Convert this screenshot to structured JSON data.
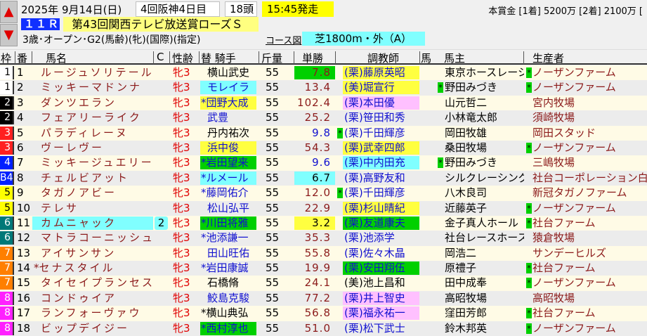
{
  "nav": {
    "up_icon": "arrow-up-icon",
    "down_icon": "arrow-down-icon"
  },
  "race": {
    "date": "2025年 9月14日(日)",
    "meeting": "4回阪神4日目",
    "runners": "18頭",
    "post_time": "15:45発走",
    "race_no": "１１Ｒ",
    "title": "第43回関西テレビ放送賞ローズＳ",
    "conditions": "3歳･オープン･G2(馬齢)(牝)(国際)(指定)",
    "course_link": "コース図",
    "course": "芝1800m・外（A）",
    "prize": "本賞金 [1着] 5200万 [2着] 2100万 ["
  },
  "headers": {
    "waku": "枠",
    "num": "番",
    "name": "馬名",
    "c": "C",
    "sex_age": "性齢",
    "jockey": "替 騎手",
    "weight": "斤量",
    "odds": "単勝",
    "trainer": "調教師",
    "mark": "馬",
    "owner": "馬主",
    "breeder": "生産者"
  },
  "colors": {
    "row_a": "#fffbe6",
    "row_b": "#ececec",
    "green": "#00d000",
    "yellow": "#ffff40",
    "cyan": "#80ffff",
    "pink": "#ffc0ff",
    "blue_text": "#1010d0",
    "brown_text": "#8b1a1a",
    "sex_text": "#e00000"
  },
  "waku_colors": {
    "1": [
      "#ffffff",
      "#000000"
    ],
    "2": [
      "#000000",
      "#ffffff"
    ],
    "3": [
      "#ff2020",
      "#ffffff"
    ],
    "4": [
      "#0020ff",
      "#ffffff"
    ],
    "5": [
      "#ffff00",
      "#000000"
    ],
    "6": [
      "#007878",
      "#ffffff"
    ],
    "7": [
      "#ff7f00",
      "#ffffff"
    ],
    "8": [
      "#ff20ff",
      "#ffffff"
    ]
  },
  "horses": [
    {
      "waku": "1",
      "waku_label": "1",
      "num": "1",
      "name": "ルージュソリテール",
      "sex_age": "牝3",
      "jockey": "横山武史",
      "jc": "black",
      "weight": "55",
      "odds": "7.8",
      "oc": "brown",
      "ob": "green",
      "trainer": "(栗)藤原英昭",
      "tc": "blue",
      "tb": "yellow",
      "owner": "東京ホースレーシ",
      "breeder_mark": "*",
      "breeder": "ノーザンファーム"
    },
    {
      "waku": "1",
      "waku_label": "1",
      "num": "2",
      "name": "ミッキーマドンナ",
      "sex_age": "牝3",
      "jockey": "モレイラ",
      "jc": "blue",
      "jb": "cyan",
      "weight": "55",
      "odds": "13.4",
      "oc": "brown",
      "trainer": "(美)堀宣行",
      "tc": "blue",
      "tb": "yellow",
      "owner_mark": "*",
      "owner": "野田みづき",
      "breeder_mark": "*",
      "breeder": "ノーザンファーム"
    },
    {
      "waku": "2",
      "waku_label": "2",
      "num": "3",
      "name": "ダンツエラン",
      "sex_age": "牝3",
      "jockey_mark": "*",
      "jockey": "団野大成",
      "jc": "blue",
      "jb": "yellow",
      "weight": "55",
      "odds": "102.4",
      "oc": "brown",
      "trainer": "(栗)本田優",
      "tc": "blue",
      "tb": "pink",
      "owner": "山元哲二",
      "breeder": "宮内牧場"
    },
    {
      "waku": "2",
      "waku_label": "2",
      "num": "4",
      "name": "フェアリーライク",
      "sex_age": "牝3",
      "jockey": "武豊",
      "jc": "blue",
      "weight": "55",
      "odds": "25.2",
      "oc": "brown",
      "trainer": "(栗)笹田和秀",
      "tc": "blue",
      "owner": "小林竜太郎",
      "breeder": "須崎牧場"
    },
    {
      "waku": "3",
      "waku_label": "3",
      "num": "5",
      "name": "パラディレーヌ",
      "sex_age": "牝3",
      "jockey": "丹内祐次",
      "jc": "black",
      "weight": "55",
      "odds": "9.8",
      "oc": "blue",
      "trainer_mark": "*",
      "trainer": "(栗)千田輝彦",
      "tc": "blue",
      "owner": "岡田牧雄",
      "breeder": "岡田スタッド"
    },
    {
      "waku": "3",
      "waku_label": "3",
      "num": "6",
      "name": "ヴーレヴー",
      "sex_age": "牝3",
      "jockey": "浜中俊",
      "jc": "blue",
      "jb": "yellow",
      "weight": "55",
      "odds": "54.3",
      "oc": "brown",
      "trainer": "(栗)武幸四郎",
      "tc": "blue",
      "tb": "yellow",
      "owner": "桑田牧場",
      "breeder_mark": "*",
      "breeder": "ノーザンファーム"
    },
    {
      "waku": "4",
      "waku_label": "4",
      "num": "7",
      "name": "ミッキージュエリー",
      "sex_age": "牝3",
      "jockey_mark": "*",
      "jockey": "岩田望来",
      "jc": "blue",
      "jb": "green",
      "weight": "55",
      "odds": "9.6",
      "oc": "blue",
      "trainer": "(栗)中内田充",
      "tc": "blue",
      "tb": "cyan",
      "owner_mark": "*",
      "owner": "野田みづき",
      "breeder": "三嶋牧場"
    },
    {
      "waku": "4",
      "waku_label": "B4",
      "num": "8",
      "name": "チェルビアット",
      "sex_age": "牝3",
      "jockey_mark": "*",
      "jockey": "ルメール",
      "jc": "blue",
      "jb": "cyan",
      "weight": "55",
      "odds": "6.7",
      "oc": "black",
      "ob": "cyan",
      "trainer": "(栗)高野友和",
      "tc": "blue",
      "owner": "シルクレーシング",
      "breeder": "社台コーポレーション白老"
    },
    {
      "waku": "5",
      "waku_label": "5",
      "num": "9",
      "name": "タガノアビー",
      "sex_age": "牝3",
      "jockey_mark": "*",
      "jockey": "藤岡佑介",
      "jc": "blue",
      "weight": "55",
      "odds": "12.0",
      "oc": "brown",
      "trainer_mark": "*",
      "trainer": "(栗)千田輝彦",
      "tc": "blue",
      "owner": "八木良司",
      "breeder": "新冠タガノファーム"
    },
    {
      "waku": "5",
      "waku_label": "5",
      "num": "10",
      "name": "テレサ",
      "sex_age": "牝3",
      "jockey": "松山弘平",
      "jc": "blue",
      "weight": "55",
      "odds": "22.9",
      "oc": "brown",
      "trainer": "(栗)杉山晴紀",
      "tc": "blue",
      "tb": "yellow",
      "owner": "近藤英子",
      "breeder_mark": "*",
      "breeder": "ノーザンファーム"
    },
    {
      "waku": "6",
      "waku_label": "6",
      "num": "11",
      "name": "カムニャック",
      "name_bg": "cyan",
      "c": "2",
      "sex_age": "牝3",
      "jockey_mark": "*",
      "jockey": "川田将雅",
      "jc": "blue",
      "jb": "green",
      "weight": "55",
      "odds": "3.2",
      "oc": "black",
      "ob": "yellow",
      "trainer": "(栗)友道康夫",
      "tc": "blue",
      "tb": "green",
      "owner": "金子真人ホール",
      "breeder_mark": "*",
      "breeder": "社台ファーム"
    },
    {
      "waku": "6",
      "waku_label": "6",
      "num": "12",
      "name": "マトラコーニッシュ",
      "sex_age": "牝3",
      "jockey_mark": "*",
      "jockey": "池添謙一",
      "jc": "blue",
      "weight": "55",
      "odds": "35.3",
      "oc": "brown",
      "trainer": "(栗)池添学",
      "tc": "blue",
      "owner": "社台レースホース",
      "breeder": "猿倉牧場"
    },
    {
      "waku": "7",
      "waku_label": "7",
      "num": "13",
      "name": "アイサンサン",
      "sex_age": "牝3",
      "jockey": "田山旺佑",
      "jc": "blue",
      "weight": "55",
      "odds": "55.8",
      "oc": "brown",
      "trainer": "(栗)佐々木晶",
      "tc": "blue",
      "owner": "岡浩二",
      "breeder": "サンデーヒルズ"
    },
    {
      "waku": "7",
      "waku_label": "7",
      "num": "14",
      "name_mark": "*",
      "name": "セナスタイル",
      "sex_age": "牝3",
      "jockey_mark": "*",
      "jockey": "岩田康誠",
      "jc": "blue",
      "weight": "55",
      "odds": "19.9",
      "oc": "brown",
      "trainer": "(栗)安田翔伍",
      "tc": "blue",
      "tb": "green",
      "owner": "原禮子",
      "breeder_mark": "*",
      "breeder": "社台ファーム"
    },
    {
      "waku": "7",
      "waku_label": "7",
      "num": "15",
      "name": "タイセイプランセス",
      "sex_age": "牝3",
      "jockey": "石橋脩",
      "jc": "black",
      "weight": "55",
      "odds": "24.1",
      "oc": "brown",
      "trainer": "(美)池上昌和",
      "tc": "black",
      "owner": "田中成奉",
      "breeder_mark": "*",
      "breeder": "ノーザンファーム"
    },
    {
      "waku": "8",
      "waku_label": "8",
      "num": "16",
      "name": "コンドゥイア",
      "sex_age": "牝3",
      "jockey": "鮫島克駿",
      "jc": "blue",
      "weight": "55",
      "odds": "77.2",
      "oc": "brown",
      "trainer": "(栗)井上智史",
      "tc": "blue",
      "tb": "pink",
      "owner": "高昭牧場",
      "breeder": "高昭牧場"
    },
    {
      "waku": "8",
      "waku_label": "8",
      "num": "17",
      "name": "ランフォーヴァウ",
      "sex_age": "牝3",
      "jockey_mark": "*",
      "jockey": "横山典弘",
      "jc": "black",
      "weight": "55",
      "odds": "56.8",
      "oc": "brown",
      "trainer": "(栗)福永祐一",
      "tc": "blue",
      "tb": "pink",
      "owner": "窪田芳郎",
      "breeder_mark": "*",
      "breeder": "社台ファーム"
    },
    {
      "waku": "8",
      "waku_label": "8",
      "num": "18",
      "name": "ビップデイジー",
      "sex_age": "牝3",
      "jockey_mark": "*",
      "jockey": "西村淳也",
      "jc": "blue",
      "jb": "green",
      "weight": "55",
      "odds": "51.0",
      "oc": "brown",
      "trainer": "(栗)松下武士",
      "tc": "blue",
      "owner": "鈴木邦英",
      "breeder_mark": "*",
      "breeder": "ノーザンファーム"
    }
  ]
}
